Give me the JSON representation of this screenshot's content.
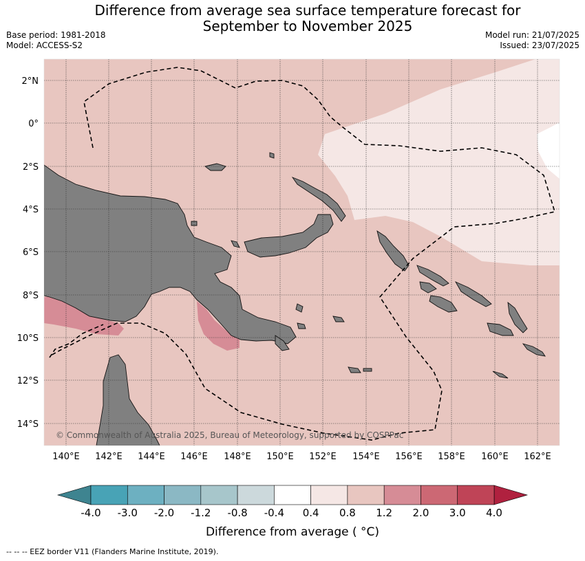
{
  "title_line1": "Difference from average sea surface temperature forecast for",
  "title_line2": "September to November 2025",
  "base_period": "Base period: 1981-2018",
  "model": "Model: ACCESS-S2",
  "model_run": "Model run: 21/07/2025",
  "issued": "Issued: 23/07/2025",
  "copyright": "© Commonwealth of Australia 2025, Bureau of Meteorology, supported by COSPPac",
  "lon_labels": [
    "140°E",
    "142°E",
    "144°E",
    "146°E",
    "148°E",
    "150°E",
    "152°E",
    "154°E",
    "156°E",
    "158°E",
    "160°E",
    "162°E"
  ],
  "lat_labels": [
    "2°N",
    "0°",
    "2°S",
    "4°S",
    "6°S",
    "8°S",
    "10°S",
    "12°S",
    "14°S"
  ],
  "colorbar": {
    "ticks": [
      "-4.0",
      "-3.0",
      "-2.0",
      "-1.2",
      "-0.8",
      "-0.4",
      "0.4",
      "0.8",
      "1.2",
      "2.0",
      "3.0",
      "4.0"
    ],
    "colors": [
      "#3e8490",
      "#48a3b6",
      "#6db0c1",
      "#8bb8c4",
      "#a7c6cb",
      "#ccd9dc",
      "#ffffff",
      "#f5e7e5",
      "#e8c6c0",
      "#d68c96",
      "#cc6874",
      "#bf4457"
    ],
    "arrow_low": "#3e8490",
    "arrow_high": "#b0213f",
    "label": "Difference from average ( °C)"
  },
  "land_color": "#808080",
  "sea_anomaly_color": "#e8c6c0",
  "weak_anomaly_color": "#f5e7e5",
  "strong_anomaly_color": "#d68c96",
  "footer": "--  --  -- EEZ border V11 (Flanders Marine Institute, 2019)."
}
